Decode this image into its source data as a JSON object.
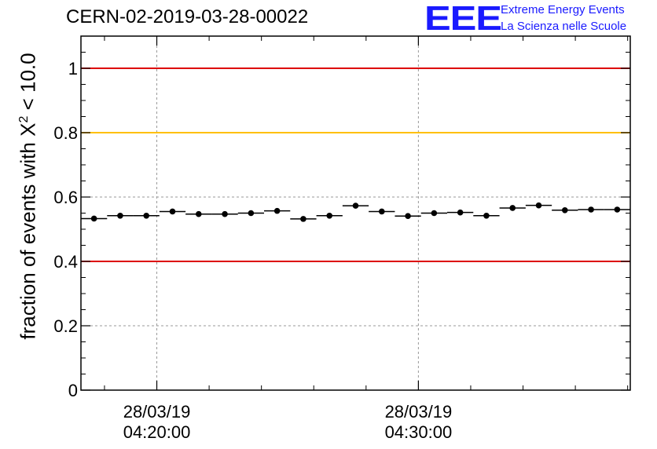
{
  "header": {
    "run_title": "CERN-02-2019-03-28-00022",
    "logo_mark": "EEE",
    "logo_line1": "Extreme Energy Events",
    "logo_line2": "La Scienza nelle Scuole"
  },
  "colors": {
    "logo": "#1a1aff",
    "threshold_red": "#dd0000",
    "threshold_yellow": "#ffc000",
    "grid": "#999999",
    "points": "#000000"
  },
  "chart_data": {
    "type": "scatter",
    "ylabel": {
      "prefix": "fraction of events with ",
      "symbol": "X",
      "exponent": "2",
      "suffix": " < 10.0"
    },
    "ylim": [
      0,
      1.1
    ],
    "yticks": [
      {
        "value": 0,
        "label": "0"
      },
      {
        "value": 0.2,
        "label": "0.2"
      },
      {
        "value": 0.4,
        "label": "0.4"
      },
      {
        "value": 0.6,
        "label": "0.6"
      },
      {
        "value": 0.8,
        "label": "0.8"
      },
      {
        "value": 1,
        "label": "1"
      }
    ],
    "xlim": [
      "2019-03-28T04:17:06",
      "2019-03-28T04:38:06"
    ],
    "xticks": [
      {
        "value": "2019-03-28T04:20:00",
        "date": "28/03/19",
        "time": "04:20:00"
      },
      {
        "value": "2019-03-28T04:30:00",
        "date": "28/03/19",
        "time": "04:30:00"
      }
    ],
    "grid": true,
    "reference_lines": [
      {
        "y": 1.0,
        "color": "#dd0000"
      },
      {
        "y": 0.8,
        "color": "#ffc000"
      },
      {
        "y": 0.4,
        "color": "#dd0000"
      }
    ],
    "bin_width_seconds": 60,
    "x": [
      "2019-03-28T04:17:36",
      "2019-03-28T04:18:36",
      "2019-03-28T04:19:36",
      "2019-03-28T04:20:36",
      "2019-03-28T04:21:36",
      "2019-03-28T04:22:36",
      "2019-03-28T04:23:36",
      "2019-03-28T04:24:36",
      "2019-03-28T04:25:36",
      "2019-03-28T04:26:36",
      "2019-03-28T04:27:36",
      "2019-03-28T04:28:36",
      "2019-03-28T04:29:36",
      "2019-03-28T04:30:36",
      "2019-03-28T04:31:36",
      "2019-03-28T04:32:36",
      "2019-03-28T04:33:36",
      "2019-03-28T04:34:36",
      "2019-03-28T04:35:36",
      "2019-03-28T04:36:36",
      "2019-03-28T04:37:36"
    ],
    "y": [
      0.533,
      0.542,
      0.542,
      0.555,
      0.547,
      0.547,
      0.55,
      0.557,
      0.532,
      0.542,
      0.573,
      0.555,
      0.541,
      0.55,
      0.552,
      0.542,
      0.566,
      0.574,
      0.559,
      0.561,
      0.561
    ],
    "y_error": 0.006
  }
}
